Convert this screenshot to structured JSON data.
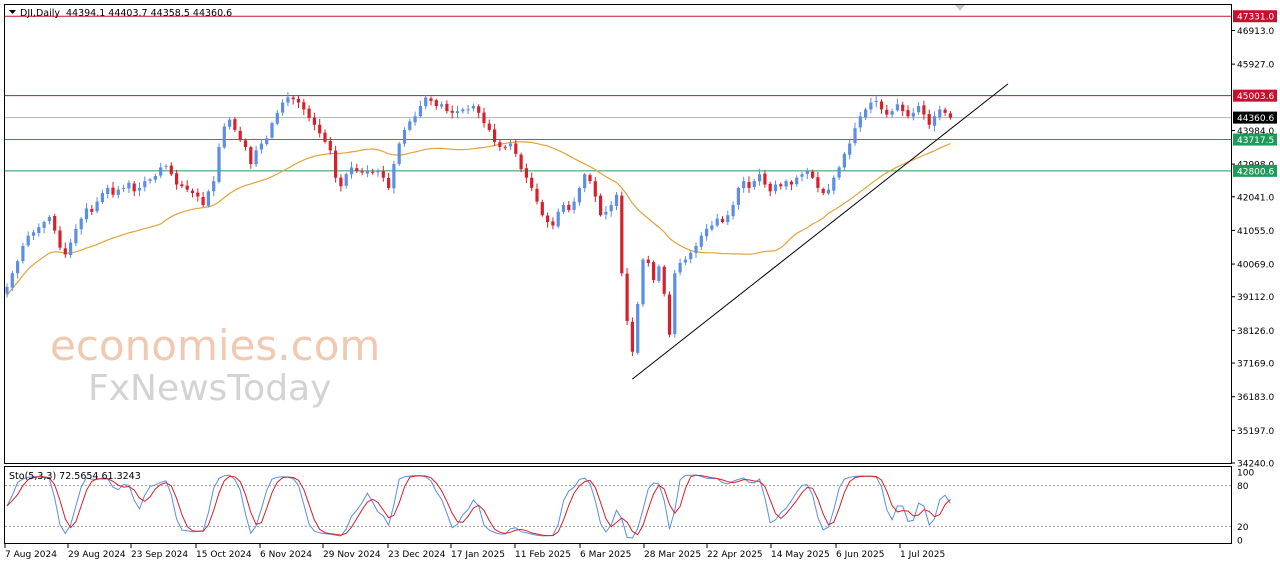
{
  "header": {
    "symbol": "DJI,Daily",
    "ohlc": "44394.1 44403.7 44358.5 44360.6"
  },
  "watermark": {
    "line1": "economies.com",
    "line2": "FxNewsToday"
  },
  "stochastic": {
    "label": "Sto(5,3,3) 72.5654 61.3243",
    "levels": [
      "100",
      "80",
      "20",
      "0"
    ]
  },
  "chart_data": {
    "type": "candlestick",
    "price_axis_ticks": [
      "46913.0",
      "45927.0",
      "43984.0",
      "42998.0",
      "42041.0",
      "41055.0",
      "40069.0",
      "39112.0",
      "38126.0",
      "37169.0",
      "36183.0",
      "35197.0",
      "34240.0"
    ],
    "ylim": [
      34240,
      47660
    ],
    "date_labels": [
      "7 Aug 2024",
      "29 Aug 2024",
      "23 Sep 2024",
      "15 Oct 2024",
      "6 Nov 2024",
      "29 Nov 2024",
      "23 Dec 2024",
      "17 Jan 2025",
      "11 Feb 2025",
      "6 Mar 2025",
      "28 Mar 2025",
      "22 Apr 2025",
      "14 May 2025",
      "6 Jun 2025",
      "1 Jul 2025"
    ],
    "horizontal_levels": [
      {
        "value": 47331.0,
        "label": "47331.0",
        "color": "#c8102e"
      },
      {
        "value": 45003.6,
        "label": "45003.6",
        "color": "#c8102e"
      },
      {
        "value": 44360.6,
        "label": "44360.6",
        "color": "#000000"
      },
      {
        "value": 43717.5,
        "label": "43717.5",
        "color": "#1e9b5a"
      },
      {
        "value": 42800.6,
        "label": "42800.6",
        "color": "#1e9b5a"
      }
    ],
    "trendline": {
      "from": [
        "28 Mar 2025",
        36700
      ],
      "to": [
        "end",
        45350
      ],
      "color": "#000000"
    },
    "moving_average": {
      "color": "#e3a33a"
    },
    "colors": {
      "bull": "#5b8ee6",
      "bear": "#d8202a",
      "stoch_main": "#5b8ee6",
      "stoch_signal": "#d8202a"
    },
    "close_series": [
      39400,
      39800,
      40150,
      40600,
      40900,
      41000,
      41150,
      41300,
      41450,
      41050,
      40550,
      40350,
      40700,
      41100,
      41400,
      41700,
      41600,
      41900,
      42150,
      42300,
      42100,
      42250,
      42300,
      42450,
      42200,
      42300,
      42500,
      42550,
      42650,
      42900,
      42950,
      42700,
      42400,
      42350,
      42250,
      42150,
      42050,
      41800,
      42200,
      42500,
      43500,
      44100,
      44300,
      44000,
      43700,
      43500,
      43000,
      43400,
      43600,
      43750,
      44200,
      44500,
      44800,
      44950,
      44900,
      44800,
      44600,
      44350,
      44150,
      43900,
      43650,
      43400,
      42600,
      42350,
      42700,
      42900,
      42800,
      42750,
      42800,
      42750,
      42800,
      42600,
      42300,
      43000,
      43600,
      44000,
      44250,
      44400,
      44700,
      44950,
      44850,
      44700,
      44750,
      44550,
      44500,
      44550,
      44600,
      44600,
      44700,
      44500,
      44200,
      44000,
      43650,
      43500,
      43500,
      43600,
      43300,
      42850,
      42600,
      42300,
      41900,
      41500,
      41300,
      41200,
      41600,
      41800,
      41650,
      41900,
      42300,
      42700,
      42500,
      42050,
      41500,
      41600,
      41800,
      42100,
      39800,
      38400,
      37500,
      38900,
      40200,
      40100,
      39600,
      40000,
      39200,
      38000,
      39800,
      40100,
      40200,
      40400,
      40600,
      40900,
      41100,
      41200,
      41400,
      41300,
      41500,
      41800,
      42300,
      42500,
      42300,
      42500,
      42700,
      42400,
      42200,
      42400,
      42350,
      42500,
      42400,
      42600,
      42700,
      42800,
      42600,
      42300,
      42150,
      42250,
      42600,
      42900,
      43300,
      43600,
      44050,
      44400,
      44600,
      44800,
      44850,
      44600,
      44450,
      44550,
      44750,
      44550,
      44400,
      44500,
      44700,
      44450,
      44150,
      44400,
      44600,
      44500,
      44360
    ]
  }
}
